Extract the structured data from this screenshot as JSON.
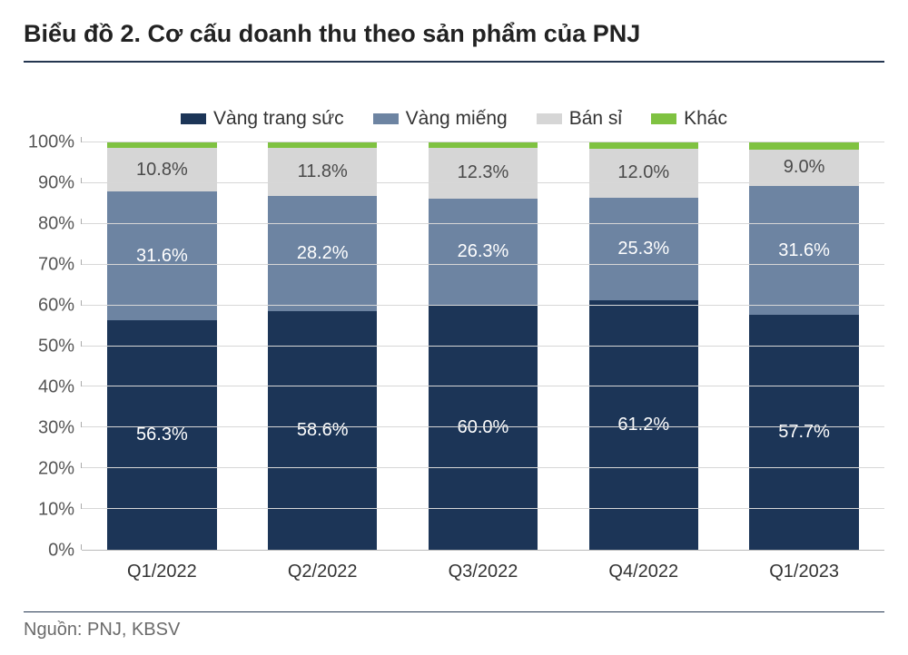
{
  "chart": {
    "type": "stacked-bar-100",
    "title": "Biểu đồ 2. Cơ cấu doanh thu theo sản phẩm của PNJ",
    "title_fontsize": 27,
    "background_color": "#ffffff",
    "title_rule_color": "#243650",
    "footer_rule_color": "#243650",
    "grid_color": "#d7d7d7",
    "axis_color": "#bbbbbb",
    "bar_width_pct": 68,
    "categories": [
      "Q1/2022",
      "Q2/2022",
      "Q3/2022",
      "Q4/2022",
      "Q1/2023"
    ],
    "y_axis": {
      "min": 0,
      "max": 100,
      "step": 10,
      "suffix": "%",
      "label_fontsize": 20,
      "label_color": "#555555"
    },
    "x_axis": {
      "label_fontsize": 20,
      "label_color": "#333333"
    },
    "legend": {
      "fontsize": 21,
      "position": "top-center",
      "items": [
        {
          "key": "vang_trang_suc",
          "label": "Vàng trang sức",
          "color": "#1c3557"
        },
        {
          "key": "vang_mieng",
          "label": "Vàng miếng",
          "color": "#6d84a2"
        },
        {
          "key": "ban_si",
          "label": "Bán sỉ",
          "color": "#d6d6d6"
        },
        {
          "key": "khac",
          "label": "Khác",
          "color": "#7fc241"
        }
      ]
    },
    "segment_label_fontsize": 20,
    "data": [
      {
        "category": "Q1/2022",
        "segments": [
          {
            "series": "vang_trang_suc",
            "value": 56.3,
            "label": "56.3%",
            "text_color": "#ffffff"
          },
          {
            "series": "vang_mieng",
            "value": 31.6,
            "label": "31.6%",
            "text_color": "#ffffff"
          },
          {
            "series": "ban_si",
            "value": 10.8,
            "label": "10.8%",
            "text_color": "#4a4a4a"
          },
          {
            "series": "khac",
            "value": 1.3,
            "label": "",
            "text_color": "#ffffff"
          }
        ]
      },
      {
        "category": "Q2/2022",
        "segments": [
          {
            "series": "vang_trang_suc",
            "value": 58.6,
            "label": "58.6%",
            "text_color": "#ffffff"
          },
          {
            "series": "vang_mieng",
            "value": 28.2,
            "label": "28.2%",
            "text_color": "#ffffff"
          },
          {
            "series": "ban_si",
            "value": 11.8,
            "label": "11.8%",
            "text_color": "#4a4a4a"
          },
          {
            "series": "khac",
            "value": 1.4,
            "label": "",
            "text_color": "#ffffff"
          }
        ]
      },
      {
        "category": "Q3/2022",
        "segments": [
          {
            "series": "vang_trang_suc",
            "value": 60.0,
            "label": "60.0%",
            "text_color": "#ffffff"
          },
          {
            "series": "vang_mieng",
            "value": 26.3,
            "label": "26.3%",
            "text_color": "#ffffff"
          },
          {
            "series": "ban_si",
            "value": 12.3,
            "label": "12.3%",
            "text_color": "#4a4a4a"
          },
          {
            "series": "khac",
            "value": 1.4,
            "label": "",
            "text_color": "#ffffff"
          }
        ]
      },
      {
        "category": "Q4/2022",
        "segments": [
          {
            "series": "vang_trang_suc",
            "value": 61.2,
            "label": "61.2%",
            "text_color": "#ffffff"
          },
          {
            "series": "vang_mieng",
            "value": 25.3,
            "label": "25.3%",
            "text_color": "#ffffff"
          },
          {
            "series": "ban_si",
            "value": 12.0,
            "label": "12.0%",
            "text_color": "#4a4a4a"
          },
          {
            "series": "khac",
            "value": 1.5,
            "label": "",
            "text_color": "#ffffff"
          }
        ]
      },
      {
        "category": "Q1/2023",
        "segments": [
          {
            "series": "vang_trang_suc",
            "value": 57.7,
            "label": "57.7%",
            "text_color": "#ffffff"
          },
          {
            "series": "vang_mieng",
            "value": 31.6,
            "label": "31.6%",
            "text_color": "#ffffff"
          },
          {
            "series": "ban_si",
            "value": 9.0,
            "label": "9.0%",
            "text_color": "#4a4a4a"
          },
          {
            "series": "khac",
            "value": 1.7,
            "label": "",
            "text_color": "#ffffff"
          }
        ]
      }
    ]
  },
  "source_label": "Nguồn: PNJ, KBSV"
}
